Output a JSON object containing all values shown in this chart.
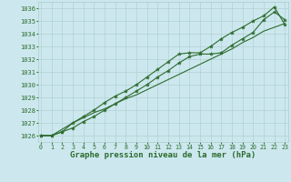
{
  "xlabel": "Graphe pression niveau de la mer (hPa)",
  "bg_color": "#cce8ee",
  "grid_color": "#aacccc",
  "line_color": "#2d6b2d",
  "x_values": [
    0,
    1,
    2,
    3,
    4,
    5,
    6,
    7,
    8,
    9,
    10,
    11,
    12,
    13,
    14,
    15,
    16,
    17,
    18,
    19,
    20,
    21,
    22,
    23
  ],
  "line1": [
    1026.0,
    1026.0,
    1026.3,
    1026.6,
    1027.1,
    1027.5,
    1028.0,
    1028.5,
    1029.0,
    1029.5,
    1030.0,
    1030.6,
    1031.1,
    1031.7,
    1032.2,
    1032.4,
    1032.4,
    1032.5,
    1033.1,
    1033.6,
    1034.1,
    1035.1,
    1035.7,
    1035.1
  ],
  "line2": [
    1026.0,
    1026.0,
    1026.3,
    1027.0,
    1027.5,
    1028.0,
    1028.6,
    1029.1,
    1029.5,
    1030.0,
    1030.6,
    1031.2,
    1031.8,
    1032.4,
    1032.5,
    1032.5,
    1033.0,
    1033.6,
    1034.1,
    1034.5,
    1035.0,
    1035.4,
    1036.1,
    1034.7
  ],
  "line3": [
    1026.0,
    1026.0,
    1026.5,
    1027.0,
    1027.4,
    1027.8,
    1028.1,
    1028.5,
    1028.9,
    1029.2,
    1029.6,
    1030.0,
    1030.4,
    1030.8,
    1031.2,
    1031.6,
    1032.0,
    1032.4,
    1032.8,
    1033.3,
    1033.7,
    1034.2,
    1034.5,
    1034.8
  ],
  "ylim": [
    1025.5,
    1036.5
  ],
  "yticks": [
    1026,
    1027,
    1028,
    1029,
    1030,
    1031,
    1032,
    1033,
    1034,
    1035,
    1036
  ],
  "xlim": [
    -0.3,
    23.3
  ],
  "xtick_fontsize": 4.8,
  "ytick_fontsize": 5.0,
  "xlabel_fontsize": 6.5,
  "marker": "*",
  "marker_size": 3.0,
  "linewidth": 0.8
}
